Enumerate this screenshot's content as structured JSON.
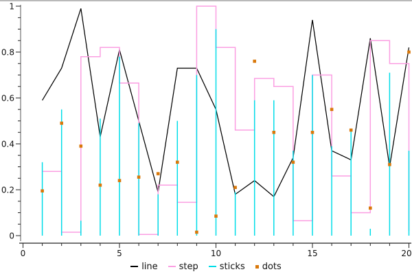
{
  "window": {
    "top_border_color": "#b9b9b9"
  },
  "chart_data": {
    "type": "line",
    "title": "",
    "xlabel": "",
    "ylabel": "",
    "grid": false,
    "xlim": [
      0,
      20.2
    ],
    "ylim": [
      0,
      1
    ],
    "x_ticks_major": [
      0,
      5,
      10,
      15,
      20
    ],
    "x_tick_labels": [
      "0",
      "5",
      "10",
      "15",
      "20"
    ],
    "x_minor_step": 1,
    "y_ticks_major": [
      0,
      0.2,
      0.4,
      0.6,
      0.8,
      1
    ],
    "y_tick_labels": [
      "0",
      "0.2",
      "0.4",
      "0.6",
      "0.8",
      "1"
    ],
    "y_minor_step": 0.05,
    "legend_position": "bottom-center",
    "axis_style": {
      "y_spine_color": "#ababab",
      "x_spine_color": "#222222",
      "tick_color": "#222222",
      "label_color": "#111111"
    },
    "x": [
      1,
      2,
      3,
      4,
      5,
      6,
      7,
      8,
      9,
      10,
      11,
      12,
      13,
      14,
      15,
      16,
      17,
      18,
      19,
      20
    ],
    "series": [
      {
        "name": "line",
        "type": "line",
        "color": "#000000",
        "values": [
          0.59,
          0.73,
          0.99,
          0.43,
          0.81,
          0.5,
          0.19,
          0.73,
          0.73,
          0.55,
          0.18,
          0.24,
          0.17,
          0.34,
          0.94,
          0.37,
          0.33,
          0.86,
          0.3,
          0.82
        ]
      },
      {
        "name": "step",
        "type": "step",
        "color": "#fb9ee2",
        "values": [
          0.28,
          0.015,
          0.78,
          0.82,
          0.665,
          0.005,
          0.22,
          0.145,
          1.0,
          0.82,
          0.46,
          0.685,
          0.65,
          0.065,
          0.7,
          0.26,
          0.1,
          0.85,
          0.75,
          0.02
        ]
      },
      {
        "name": "sticks",
        "type": "sticks",
        "color": "#00dde8",
        "values": [
          0.32,
          0.55,
          0.065,
          0.51,
          0.78,
          0.49,
          0.18,
          0.5,
          0.7,
          0.9,
          0.19,
          0.59,
          0.59,
          0.37,
          0.7,
          0.39,
          0.46,
          0.03,
          0.71,
          0.37
        ]
      },
      {
        "name": "dots",
        "type": "dots",
        "color": "#d9780a",
        "values": [
          0.195,
          0.49,
          0.39,
          0.22,
          0.24,
          0.255,
          0.27,
          0.32,
          0.015,
          0.085,
          0.21,
          0.76,
          0.45,
          0.32,
          0.45,
          0.55,
          0.46,
          0.12,
          0.31,
          0.8
        ]
      }
    ]
  }
}
